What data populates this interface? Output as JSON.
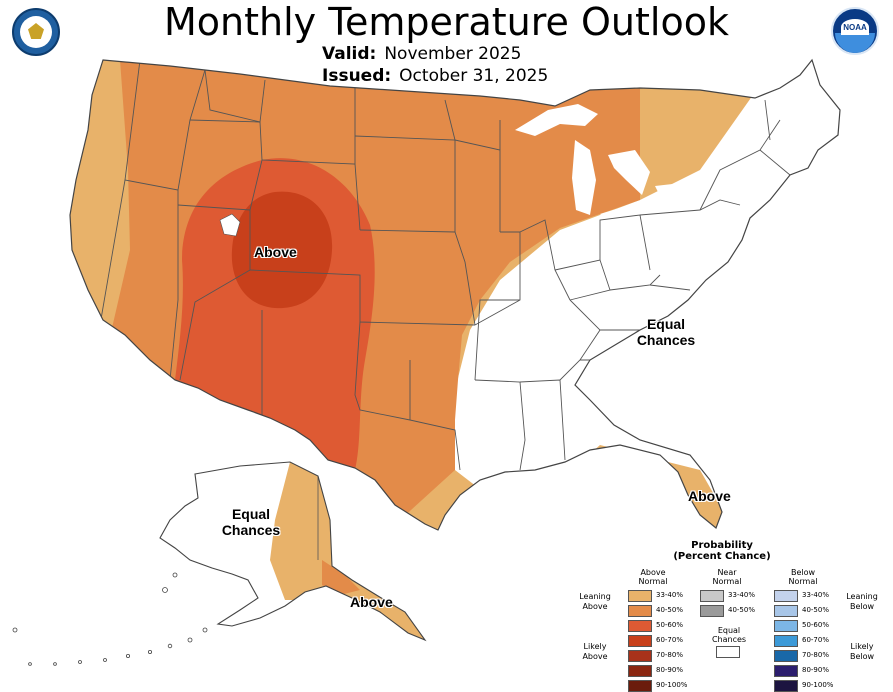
{
  "title": "Monthly Temperature Outlook",
  "valid_label": "Valid:",
  "valid_value": "November 2025",
  "issued_label": "Issued:",
  "issued_value": "October 31, 2025",
  "logos": {
    "left": "commerce-seal-icon",
    "right": "noaa-logo-icon",
    "noaa_text": "NOAA"
  },
  "map_labels": {
    "above_rockies": "Above",
    "equal_east_1": "Equal",
    "equal_east_2": "Chances",
    "above_florida": "Above",
    "equal_alaska_1": "Equal",
    "equal_alaska_2": "Chances",
    "above_alaska": "Above"
  },
  "colors": {
    "above_33_40": "#e8b26a",
    "above_40_50": "#e38b49",
    "above_50_60": "#de5a33",
    "above_60_70": "#c8401b",
    "above_70_80": "#a8321a",
    "above_80_90": "#8a2611",
    "above_90_100": "#6b1c0c",
    "near_33_40": "#c8c8c8",
    "near_40_50": "#9a9a9a",
    "equal": "#ffffff",
    "below_33_40": "#c3d2ec",
    "below_40_50": "#a8c6e8",
    "below_50_60": "#7cb6e6",
    "below_60_70": "#3c9ad8",
    "below_70_80": "#1968a8",
    "below_80_90": "#2c1e6e",
    "below_90_100": "#1c1440",
    "state_line": "#555555"
  },
  "legend": {
    "heading_1": "Probability",
    "heading_2": "(Percent Chance)",
    "above_header_1": "Above",
    "above_header_2": "Normal",
    "near_header_1": "Near",
    "near_header_2": "Normal",
    "below_header_1": "Below",
    "below_header_2": "Normal",
    "leaning_above_1": "Leaning",
    "leaning_above_2": "Above",
    "likely_above_1": "Likely",
    "likely_above_2": "Above",
    "leaning_below_1": "Leaning",
    "leaning_below_2": "Below",
    "likely_below_1": "Likely",
    "likely_below_2": "Below",
    "equal_1": "Equal",
    "equal_2": "Chances",
    "above_values": [
      "33-40%",
      "40-50%",
      "50-60%",
      "60-70%",
      "70-80%",
      "80-90%",
      "90-100%"
    ],
    "near_values": [
      "33-40%",
      "40-50%"
    ],
    "below_values": [
      "33-40%",
      "40-50%",
      "50-60%",
      "60-70%",
      "70-80%",
      "80-90%",
      "90-100%"
    ]
  }
}
